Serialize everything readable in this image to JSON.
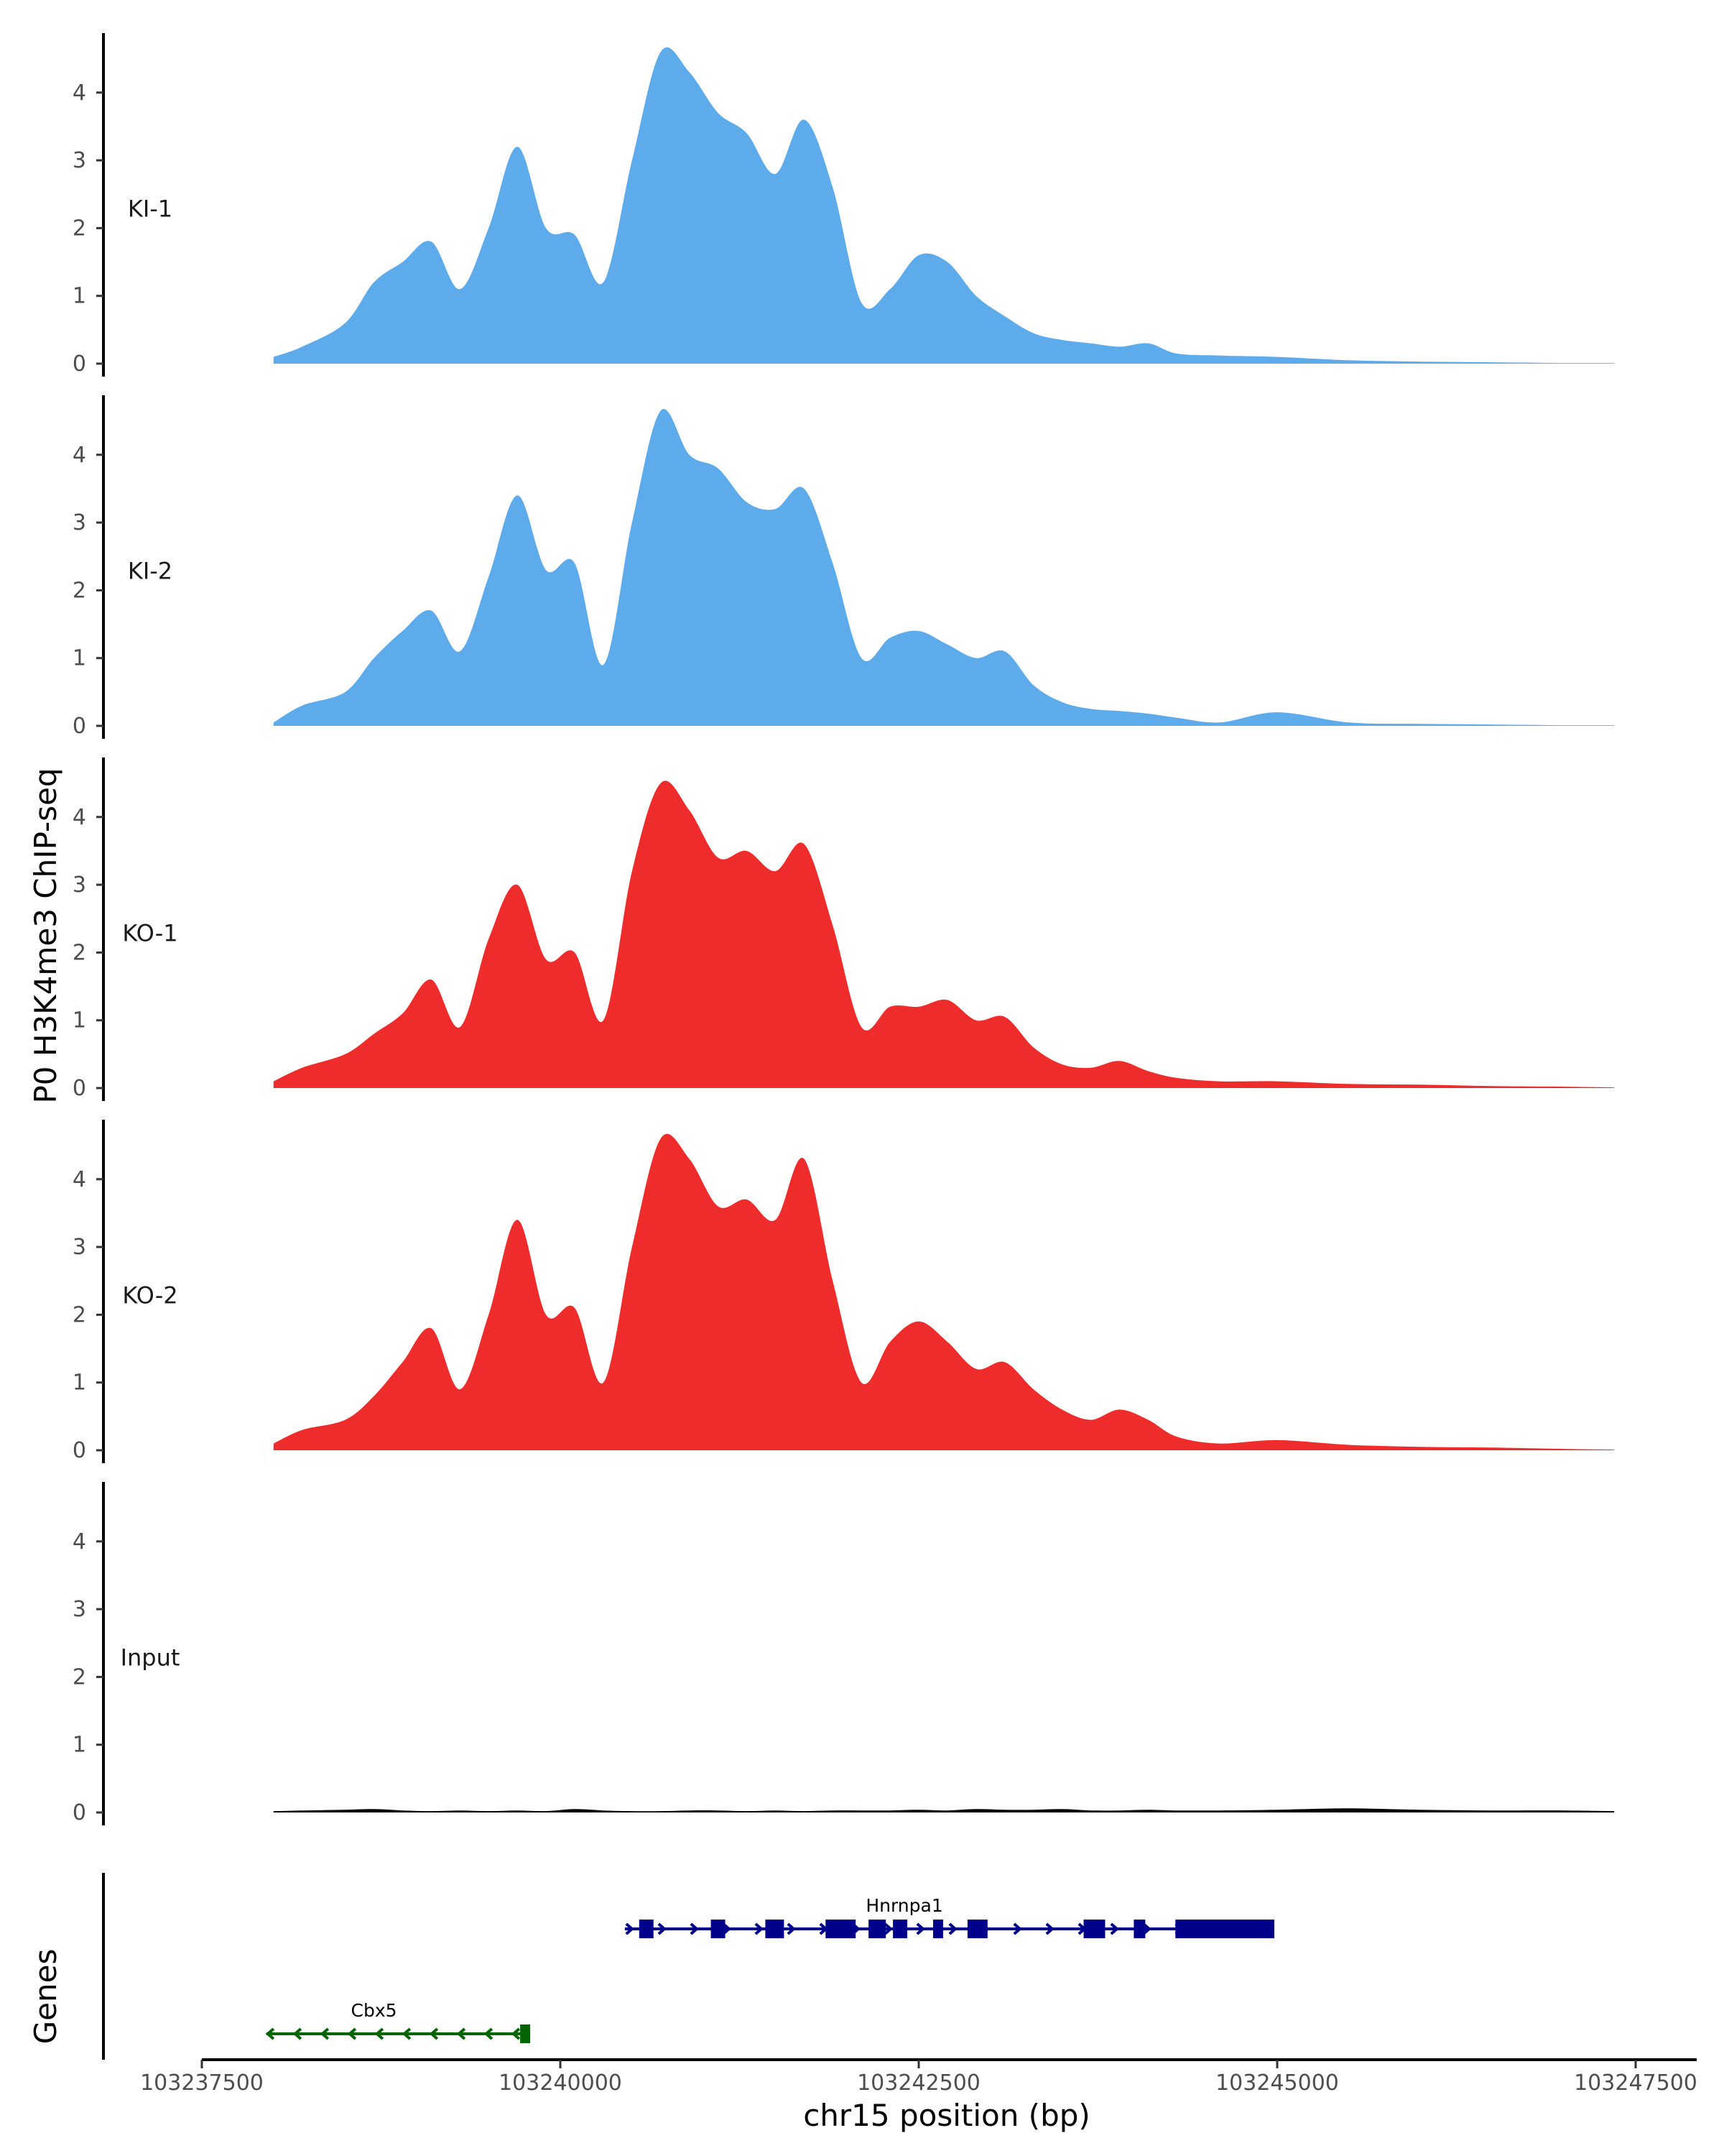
{
  "chart_data": {
    "type": "area",
    "title": "",
    "ylabel": "P0 H3K4me3 ChIP-seq",
    "xlabel": "chr15 position (bp)",
    "genes_label": "Genes",
    "xlim": [
      103237500,
      103247500
    ],
    "x_ticks": [
      103237500,
      103240000,
      103242500,
      103245000,
      103247500
    ],
    "x_tick_labels": [
      "103237500",
      "103240000",
      "103242500",
      "103245000",
      "103247500"
    ],
    "ylim": [
      0,
      4.8
    ],
    "y_ticks": [
      0,
      1,
      2,
      3,
      4
    ],
    "y_tick_labels": [
      "0",
      "1",
      "2",
      "3",
      "4"
    ],
    "x": [
      103238000,
      103238200,
      103238500,
      103238700,
      103238900,
      103239100,
      103239300,
      103239500,
      103239700,
      103239900,
      103240100,
      103240300,
      103240500,
      103240700,
      103240900,
      103241100,
      103241300,
      103241500,
      103241700,
      103241900,
      103242100,
      103242300,
      103242500,
      103242700,
      103242900,
      103243100,
      103243300,
      103243500,
      103243700,
      103243900,
      103244100,
      103244300,
      103244600,
      103245000,
      103245500,
      103246000,
      103246500,
      103247000,
      103247350
    ],
    "series": [
      {
        "name": "KI-1",
        "color": "#5DABEB",
        "values": [
          0.1,
          0.25,
          0.6,
          1.2,
          1.5,
          1.8,
          1.1,
          2.0,
          3.2,
          2.0,
          1.9,
          1.2,
          3.0,
          4.6,
          4.3,
          3.7,
          3.4,
          2.8,
          3.6,
          2.6,
          0.9,
          1.1,
          1.6,
          1.5,
          1.0,
          0.7,
          0.45,
          0.35,
          0.3,
          0.25,
          0.3,
          0.15,
          0.12,
          0.1,
          0.05,
          0.03,
          0.02,
          0.01,
          0.01
        ]
      },
      {
        "name": "KI-2",
        "color": "#5DABEB",
        "values": [
          0.05,
          0.3,
          0.5,
          1.0,
          1.4,
          1.7,
          1.1,
          2.2,
          3.4,
          2.3,
          2.4,
          0.9,
          3.0,
          4.65,
          4.0,
          3.8,
          3.3,
          3.2,
          3.5,
          2.4,
          1.0,
          1.3,
          1.4,
          1.2,
          1.0,
          1.1,
          0.6,
          0.35,
          0.25,
          0.22,
          0.18,
          0.12,
          0.05,
          0.2,
          0.05,
          0.03,
          0.02,
          0.01,
          0.01
        ]
      },
      {
        "name": "KO-1",
        "color": "#EE2C2C",
        "values": [
          0.1,
          0.3,
          0.5,
          0.8,
          1.1,
          1.6,
          0.9,
          2.2,
          3.0,
          1.9,
          2.0,
          1.0,
          3.2,
          4.5,
          4.1,
          3.4,
          3.5,
          3.2,
          3.6,
          2.4,
          0.9,
          1.2,
          1.2,
          1.3,
          1.0,
          1.05,
          0.6,
          0.35,
          0.3,
          0.4,
          0.25,
          0.15,
          0.1,
          0.1,
          0.06,
          0.05,
          0.03,
          0.02,
          0.01
        ]
      },
      {
        "name": "KO-2",
        "color": "#EE2C2C",
        "values": [
          0.1,
          0.3,
          0.45,
          0.8,
          1.3,
          1.8,
          0.9,
          2.0,
          3.4,
          2.0,
          2.1,
          1.0,
          3.0,
          4.6,
          4.3,
          3.6,
          3.7,
          3.4,
          4.3,
          2.5,
          1.0,
          1.6,
          1.9,
          1.6,
          1.2,
          1.3,
          0.9,
          0.6,
          0.45,
          0.6,
          0.45,
          0.2,
          0.1,
          0.15,
          0.08,
          0.05,
          0.04,
          0.02,
          0.01
        ]
      },
      {
        "name": "Input",
        "color": "#000000",
        "values": [
          0.02,
          0.03,
          0.04,
          0.05,
          0.03,
          0.02,
          0.03,
          0.02,
          0.03,
          0.02,
          0.05,
          0.03,
          0.02,
          0.02,
          0.03,
          0.03,
          0.02,
          0.03,
          0.02,
          0.03,
          0.03,
          0.03,
          0.04,
          0.03,
          0.05,
          0.04,
          0.04,
          0.05,
          0.03,
          0.03,
          0.04,
          0.03,
          0.03,
          0.04,
          0.06,
          0.04,
          0.03,
          0.03,
          0.02
        ]
      }
    ],
    "genes": [
      {
        "name": "Hnrnpa1",
        "strand": "+",
        "color": "#00008B",
        "start": 103240450,
        "end": 103244980,
        "exons": [
          [
            103240550,
            103240650
          ],
          [
            103241050,
            103241150
          ],
          [
            103241430,
            103241560
          ],
          [
            103241850,
            103242060
          ],
          [
            103242150,
            103242270
          ],
          [
            103242320,
            103242420
          ],
          [
            103242600,
            103242670
          ],
          [
            103242840,
            103242980
          ],
          [
            103243650,
            103243800
          ],
          [
            103244000,
            103244080
          ],
          [
            103244290,
            103244980
          ]
        ]
      },
      {
        "name": "Cbx5",
        "strand": "-",
        "color": "#006400",
        "start": 103237950,
        "end": 103239790,
        "exons": [
          [
            103239720,
            103239790
          ]
        ]
      }
    ]
  }
}
